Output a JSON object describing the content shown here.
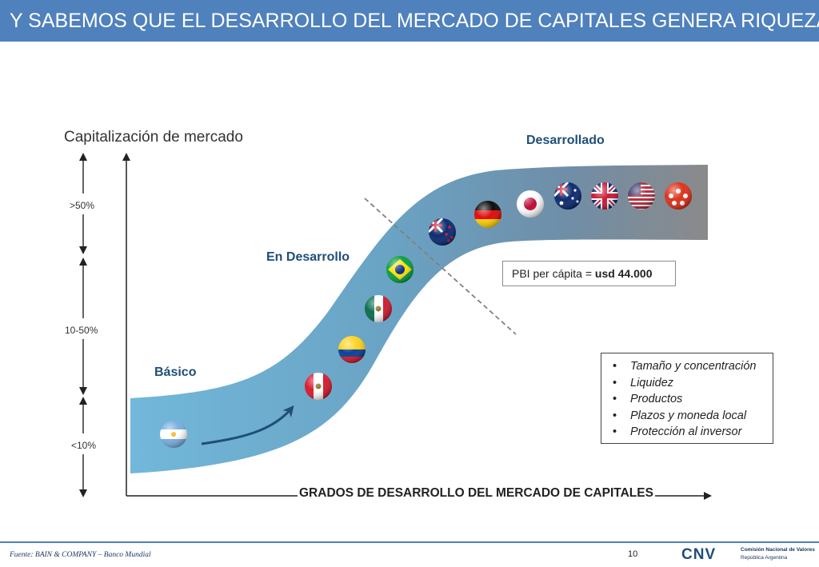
{
  "title": "Y SABEMOS QUE EL DESARROLLO DEL MERCADO DE CAPITALES GENERA RIQUEZA",
  "y_axis_title": "Capitalización de mercado",
  "bands": {
    "high": ">50%",
    "mid": "10-50%",
    "low": "<10%"
  },
  "stages": {
    "basic": "Básico",
    "developing": "En Desarrollo",
    "developed": "Desarrollado"
  },
  "x_axis_title": "GRADOS DE DESARROLLO DEL MERCADO DE CAPITALES",
  "pbi": {
    "label": "PBI per cápita = ",
    "value": "usd 44.000"
  },
  "factors": [
    "Tamaño y concentración",
    "Liquidez",
    "Productos",
    "Plazos y moneda local",
    "Protección al inversor"
  ],
  "flags": [
    {
      "country": "argentina",
      "icon": "argentina-flag-icon"
    },
    {
      "country": "peru",
      "icon": "peru-flag-icon"
    },
    {
      "country": "colombia",
      "icon": "colombia-flag-icon"
    },
    {
      "country": "mexico",
      "icon": "mexico-flag-icon"
    },
    {
      "country": "brazil",
      "icon": "brazil-flag-icon"
    },
    {
      "country": "new-zealand",
      "icon": "new-zealand-flag-icon"
    },
    {
      "country": "germany",
      "icon": "germany-flag-icon"
    },
    {
      "country": "japan",
      "icon": "japan-flag-icon"
    },
    {
      "country": "australia",
      "icon": "australia-flag-icon"
    },
    {
      "country": "united-kingdom",
      "icon": "united-kingdom-flag-icon"
    },
    {
      "country": "united-states",
      "icon": "united-states-flag-icon"
    },
    {
      "country": "hong-kong",
      "icon": "hong-kong-flag-icon"
    }
  ],
  "colors": {
    "title_bar": "#4f81bd",
    "curve_start": "#6fb3d6",
    "curve_end": "#8c8c8c",
    "stage_text": "#1f4e79"
  },
  "footer": {
    "source": "Fuente: BAIN & COMPANY – Banco Mundial",
    "page_number": "10",
    "logo_mark": "CNV",
    "logo_org": "Comisión Nacional de Valores",
    "logo_country": "República Argentina"
  }
}
